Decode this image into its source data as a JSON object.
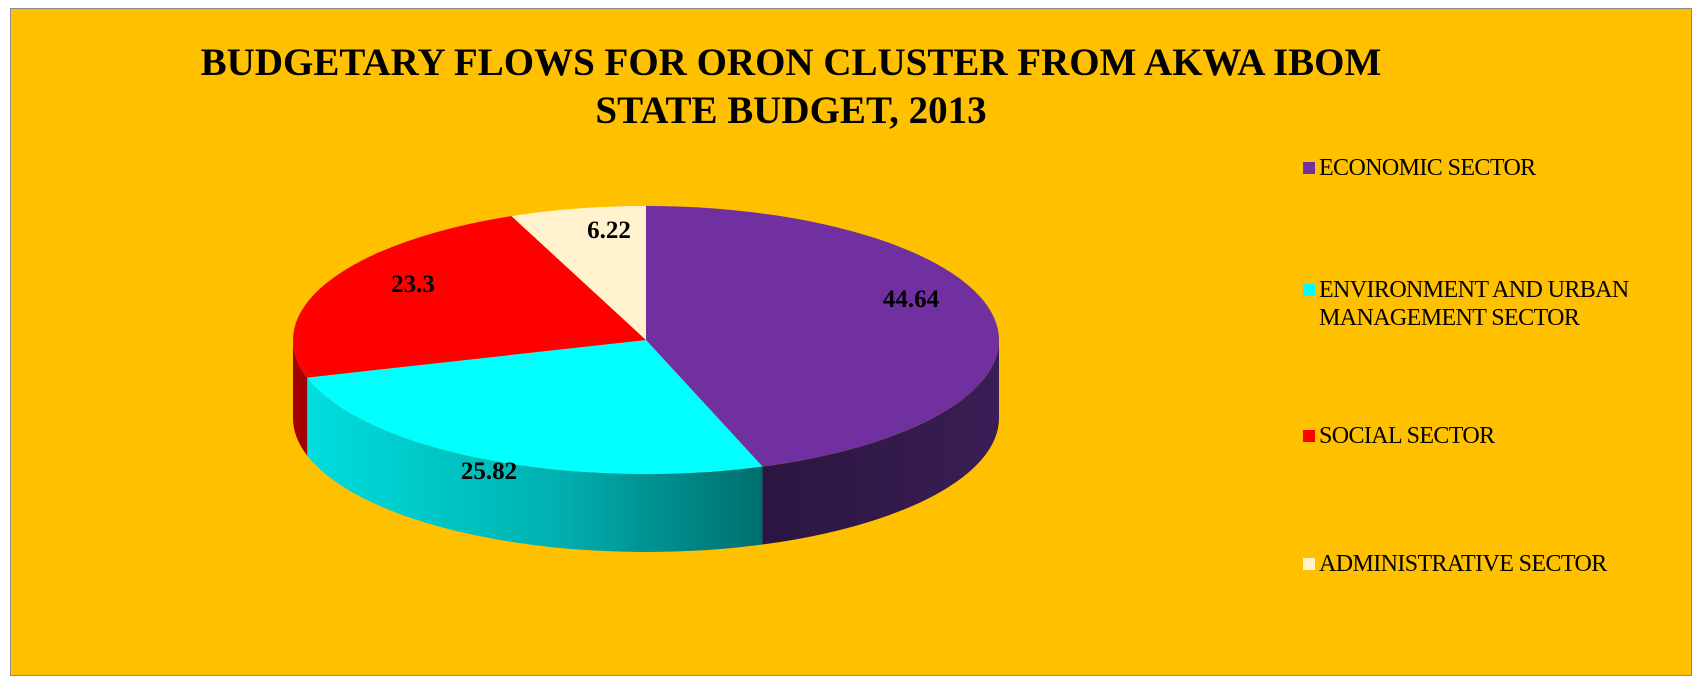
{
  "chart_data": {
    "type": "pie",
    "title": "BUDGETARY FLOWS FOR ORON CLUSTER FROM AKWA IBOM STATE BUDGET, 2013",
    "slices": [
      {
        "label": "ECONOMIC SECTOR",
        "value": 44.64,
        "value_label": "44.64",
        "color": "#7030a0",
        "side_color": "#2c1640"
      },
      {
        "label": "ENVIRONMENT AND URBAN MANAGEMENT SECTOR",
        "value": 25.82,
        "value_label": "25.82",
        "color": "#00ffff",
        "side_color": "#00b3b3"
      },
      {
        "label": "SOCIAL SECTOR",
        "value": 23.3,
        "value_label": "23.3",
        "color": "#ff0000",
        "side_color": "#a30000"
      },
      {
        "label": "ADMINISTRATIVE SECTOR",
        "value": 6.22,
        "value_label": "6.22",
        "color": "#fff2cc",
        "side_color": "#c9bf9f"
      }
    ],
    "legend_position": "right",
    "background_color": "#ffc000"
  }
}
